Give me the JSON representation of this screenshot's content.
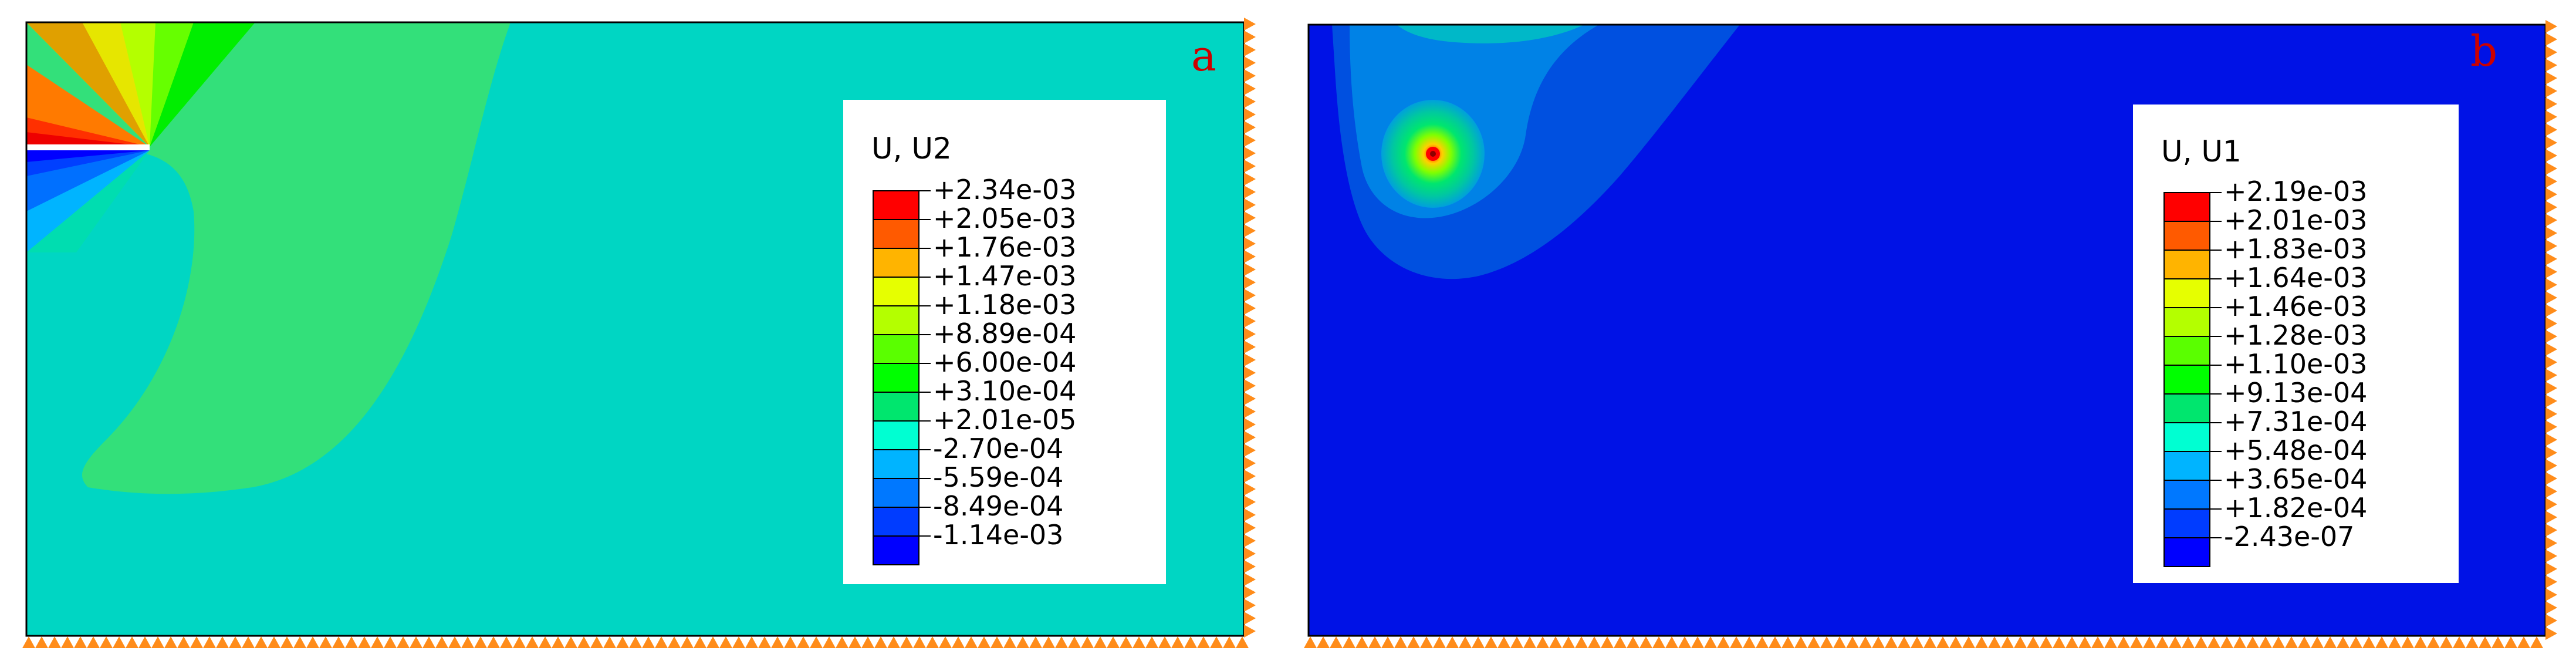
{
  "panels": [
    {
      "letter": "a",
      "legend_title": "U, U2",
      "legend_values": [
        "+2.34e-03",
        "+2.05e-03",
        "+1.76e-03",
        "+1.47e-03",
        "+1.18e-03",
        "+8.89e-04",
        "+6.00e-04",
        "+3.10e-04",
        "+2.01e-05",
        "-2.70e-04",
        "-5.59e-04",
        "-8.49e-04",
        "-1.14e-03"
      ]
    },
    {
      "letter": "b",
      "legend_title": "U, U1",
      "legend_values": [
        "+2.19e-03",
        "+2.01e-03",
        "+1.83e-03",
        "+1.64e-03",
        "+1.46e-03",
        "+1.28e-03",
        "+1.10e-03",
        "+9.13e-04",
        "+7.31e-04",
        "+5.48e-04",
        "+3.65e-04",
        "+1.82e-04",
        "-2.43e-07"
      ]
    }
  ],
  "colors": {
    "band_colors": [
      "#ff0000",
      "#ff5a00",
      "#ffb400",
      "#e6ff00",
      "#b4ff00",
      "#5aff00",
      "#00ff00",
      "#00e66e",
      "#00ffd2",
      "#00b4ff",
      "#0078ff",
      "#003cff",
      "#0000ff"
    ],
    "panel_a_background": "#00d6c3",
    "panel_b_background": "#0012e6",
    "letter_color": "#cc0000",
    "bc_marker": "#ff8c1a"
  }
}
